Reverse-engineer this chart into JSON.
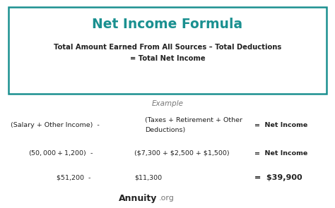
{
  "title": "Net Income Formula",
  "title_color": "#1a9090",
  "formula_line1": "Total Amount Earned From All Sources – Total Deductions",
  "formula_line2": "= Total Net Income",
  "formula_color": "#222222",
  "example_label": "Example",
  "example_color": "#777777",
  "row1_col1": "(Salary + Other Income)  -",
  "row1_col2a": "(Taxes + Retirement + Other",
  "row1_col2b": "Deductions)",
  "row1_col3": "=  Net Income",
  "row2_col1": "($50,000 + $1,200)  -",
  "row2_col2": "($7,300 + $2,500 + $1,500)",
  "row2_col3": "=  Net Income",
  "row3_col1": "$51,200  -",
  "row3_col2": "$11,300",
  "row3_col3": "=  $39,900",
  "row3_col3_color": "#222222",
  "footer_bold": "Annuity",
  "footer_normal": ".org",
  "footer_color": "#222222",
  "footer_normal_color": "#777777",
  "bg_color": "#ffffff",
  "box_border_color": "#1a9090",
  "text_color": "#222222"
}
